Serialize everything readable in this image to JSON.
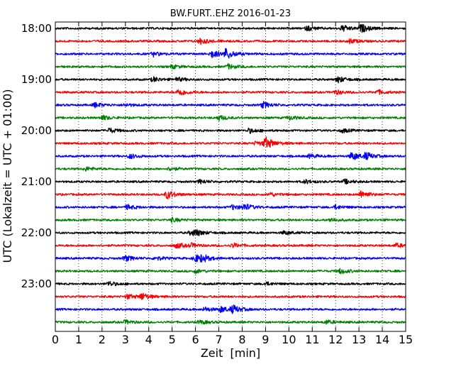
{
  "chart_data": {
    "type": "line",
    "title": "BW.FURT..EHZ 2016-01-23",
    "xlabel": "Zeit  [min]",
    "ylabel": "UTC (Lokalzeit = UTC + 01:00)",
    "xlim": [
      0,
      15
    ],
    "x_ticks": [
      0,
      1,
      2,
      3,
      4,
      5,
      6,
      7,
      8,
      9,
      10,
      11,
      12,
      13,
      14,
      15
    ],
    "x_tick_labels": [
      "0",
      "1",
      "2",
      "3",
      "4",
      "5",
      "6",
      "7",
      "8",
      "9",
      "10",
      "11",
      "12",
      "13",
      "14",
      "15"
    ],
    "y_tick_labels": [
      "18:00",
      "19:00",
      "20:00",
      "21:00",
      "22:00",
      "23:00"
    ],
    "grid": "vertical dotted at each minute",
    "trace_colors": [
      "#000000",
      "#ff0000",
      "#0000ff",
      "#008000"
    ],
    "traces": [
      {
        "start": "18:00",
        "events": [
          [
            10.8,
            1.0
          ],
          [
            12.3,
            1.3
          ],
          [
            13.1,
            1.6
          ]
        ]
      },
      {
        "start": "18:15",
        "events": [
          [
            6.2,
            1.3
          ],
          [
            12.6,
            1.0
          ]
        ]
      },
      {
        "start": "18:30",
        "events": [
          [
            6.7,
            1.6
          ],
          [
            7.3,
            2.2
          ],
          [
            4.2,
            0.9
          ]
        ]
      },
      {
        "start": "18:45",
        "events": [
          [
            7.4,
            1.0
          ],
          [
            5.0,
            0.8
          ]
        ]
      },
      {
        "start": "19:00",
        "events": [
          [
            4.2,
            1.0
          ],
          [
            12.1,
            1.3
          ],
          [
            5.2,
            0.8
          ]
        ]
      },
      {
        "start": "19:15",
        "events": [
          [
            5.3,
            1.6
          ],
          [
            12.0,
            0.9
          ],
          [
            13.8,
            0.9
          ]
        ]
      },
      {
        "start": "19:30",
        "events": [
          [
            1.7,
            1.0
          ],
          [
            8.9,
            1.3
          ],
          [
            3.0,
            0.6
          ]
        ]
      },
      {
        "start": "19:45",
        "events": [
          [
            2.0,
            1.0
          ],
          [
            7.0,
            1.0
          ],
          [
            10.0,
            0.9
          ]
        ]
      },
      {
        "start": "20:00",
        "events": [
          [
            2.3,
            1.0
          ],
          [
            8.3,
            1.0
          ],
          [
            12.3,
            0.8
          ]
        ]
      },
      {
        "start": "20:15",
        "events": [
          [
            9.0,
            2.5
          ],
          [
            8.6,
            0.8
          ]
        ]
      },
      {
        "start": "20:30",
        "events": [
          [
            3.2,
            1.0
          ],
          [
            12.7,
            1.8
          ],
          [
            13.3,
            1.4
          ],
          [
            10.9,
            0.8
          ]
        ]
      },
      {
        "start": "20:45",
        "events": [
          [
            1.3,
            0.8
          ],
          [
            4.9,
            0.7
          ]
        ]
      },
      {
        "start": "21:00",
        "events": [
          [
            6.2,
            0.8
          ],
          [
            10.7,
            0.8
          ],
          [
            12.4,
            0.9
          ]
        ]
      },
      {
        "start": "21:15",
        "events": [
          [
            4.8,
            1.8
          ],
          [
            13.1,
            1.6
          ],
          [
            9.2,
            0.8
          ]
        ]
      },
      {
        "start": "21:30",
        "events": [
          [
            3.1,
            1.0
          ],
          [
            7.6,
            1.0
          ],
          [
            8.1,
            1.3
          ],
          [
            12.0,
            0.8
          ]
        ]
      },
      {
        "start": "21:45",
        "events": [
          [
            5.0,
            0.8
          ],
          [
            11.8,
            0.8
          ]
        ]
      },
      {
        "start": "22:00",
        "events": [
          [
            5.8,
            0.9
          ],
          [
            6.0,
            1.1
          ],
          [
            9.8,
            0.8
          ]
        ]
      },
      {
        "start": "22:15",
        "events": [
          [
            5.2,
            1.1
          ],
          [
            5.8,
            0.8
          ],
          [
            7.6,
            0.9
          ],
          [
            14.6,
            0.8
          ]
        ]
      },
      {
        "start": "22:30",
        "events": [
          [
            3.0,
            1.2
          ],
          [
            6.0,
            1.6
          ],
          [
            6.3,
            1.2
          ],
          [
            4.3,
            0.8
          ]
        ]
      },
      {
        "start": "22:45",
        "events": [
          [
            12.2,
            1.1
          ],
          [
            6.0,
            0.8
          ]
        ]
      },
      {
        "start": "23:00",
        "events": [
          [
            2.3,
            1.0
          ],
          [
            9.0,
            0.7
          ]
        ]
      },
      {
        "start": "23:15",
        "events": [
          [
            3.1,
            1.0
          ],
          [
            3.7,
            1.4
          ]
        ]
      },
      {
        "start": "23:30",
        "events": [
          [
            7.1,
            1.2
          ],
          [
            7.6,
            1.6
          ],
          [
            6.4,
            0.9
          ]
        ]
      },
      {
        "start": "23:45",
        "events": [
          [
            3.0,
            0.8
          ],
          [
            6.2,
            0.8
          ],
          [
            11.6,
            0.8
          ]
        ]
      }
    ]
  }
}
